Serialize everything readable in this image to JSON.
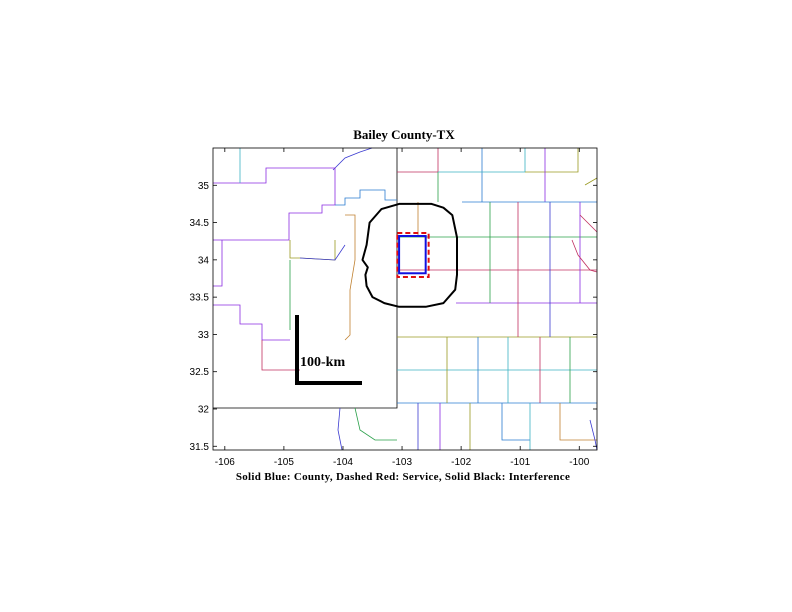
{
  "chart_data": {
    "type": "map",
    "title": "Bailey County-TX",
    "xlabel": "Solid Blue: County, Dashed Red: Service, Solid Black: Interference",
    "ylabel": "",
    "xlim": [
      -106.2,
      -99.7
    ],
    "ylim": [
      31.45,
      35.5
    ],
    "x_ticks": [
      "-106",
      "-105",
      "-104",
      "-103",
      "-102",
      "-101",
      "-100"
    ],
    "y_ticks": [
      "31.5",
      "32",
      "32.5",
      "33",
      "33.5",
      "34",
      "34.5",
      "35"
    ],
    "x_tick_values": [
      -106,
      -105,
      -104,
      -103,
      -102,
      -101,
      -100
    ],
    "y_tick_values": [
      31.5,
      32,
      32.5,
      33,
      33.5,
      34,
      34.5,
      35
    ],
    "scale_bar_label": "100-km",
    "county_box": {
      "lon": [
        -103.05,
        -102.6
      ],
      "lat": [
        33.82,
        34.32
      ]
    },
    "service_box": {
      "lon": [
        -103.08,
        -102.55
      ],
      "lat": [
        33.77,
        34.36
      ]
    },
    "interference_contour": [
      [
        -103.05,
        34.75
      ],
      [
        -102.5,
        34.75
      ],
      [
        -102.3,
        34.7
      ],
      [
        -102.15,
        34.6
      ],
      [
        -102.07,
        34.3
      ],
      [
        -102.07,
        33.8
      ],
      [
        -102.1,
        33.6
      ],
      [
        -102.3,
        33.42
      ],
      [
        -102.6,
        33.37
      ],
      [
        -103.05,
        33.37
      ],
      [
        -103.3,
        33.42
      ],
      [
        -103.5,
        33.5
      ],
      [
        -103.6,
        33.65
      ],
      [
        -103.62,
        33.8
      ],
      [
        -103.58,
        33.9
      ],
      [
        -103.67,
        34.0
      ],
      [
        -103.6,
        34.2
      ],
      [
        -103.55,
        34.5
      ],
      [
        -103.35,
        34.68
      ],
      [
        -103.05,
        34.75
      ]
    ],
    "legend": "none"
  }
}
